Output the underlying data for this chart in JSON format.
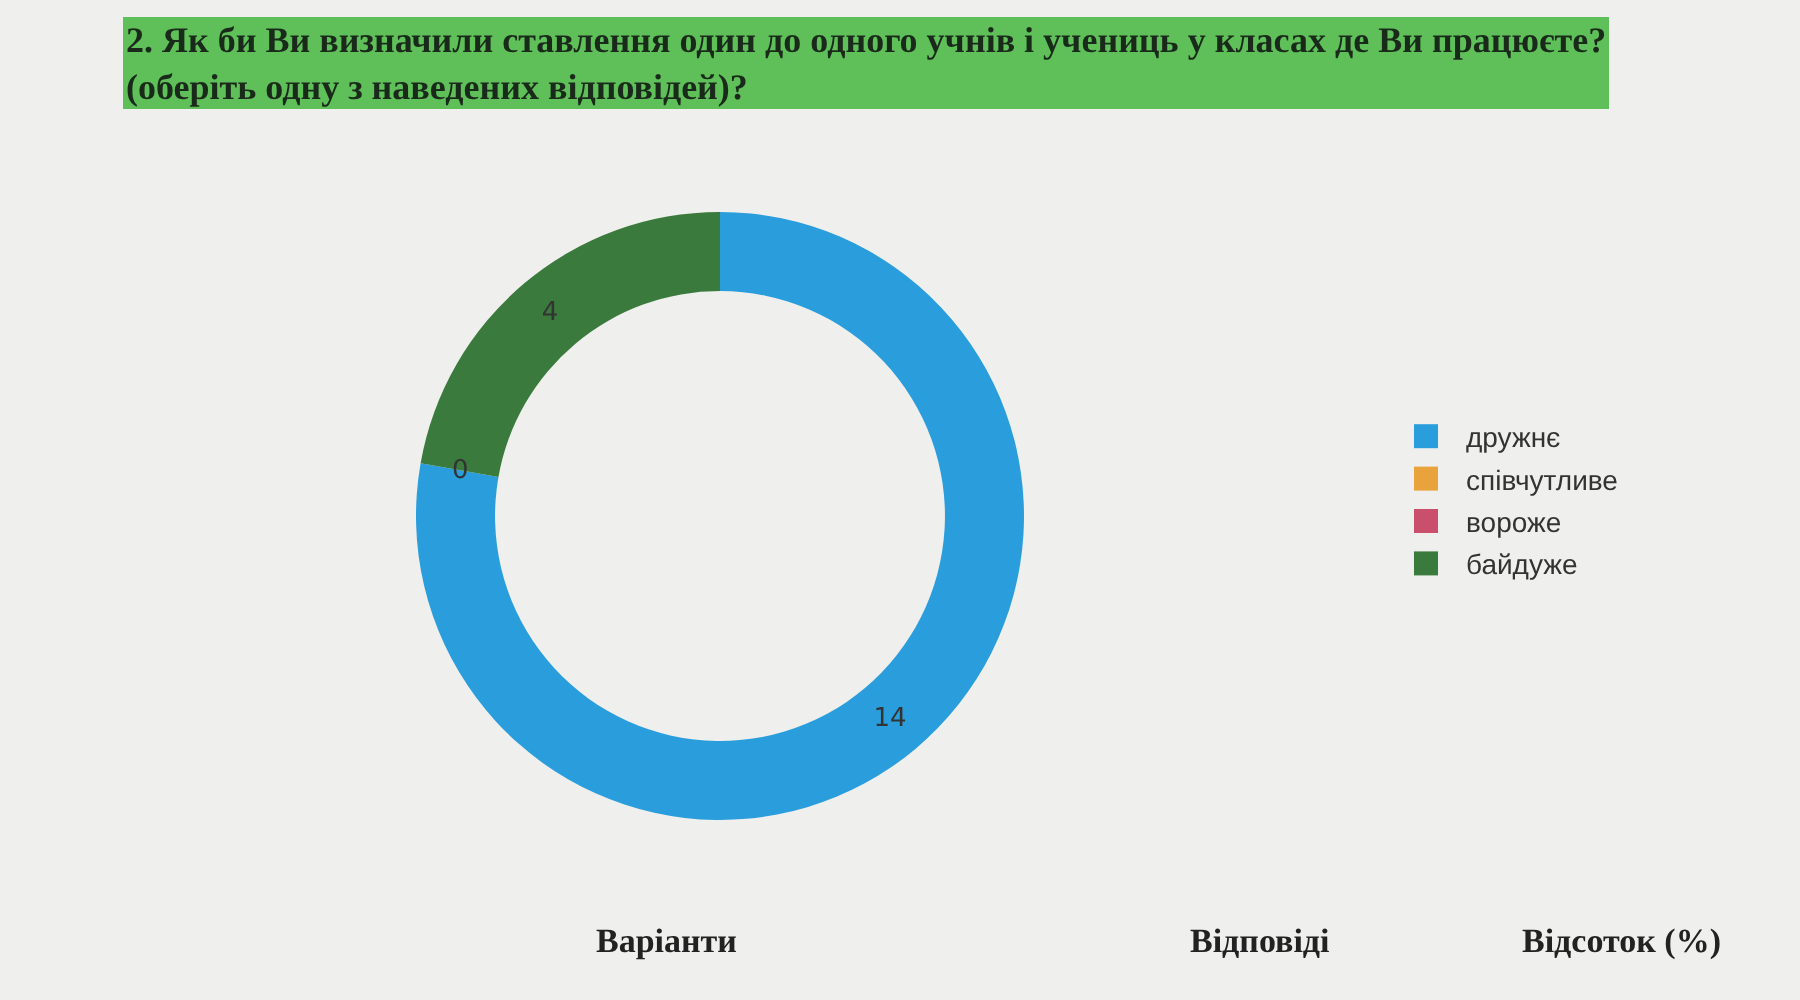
{
  "chart_data": {
    "type": "donut",
    "title": "2. Як би Ви визначили ставлення один до одного учнів і учениць у класах де Ви працюєте?\n(оберіть одну з наведених відповідей)?",
    "categories": [
      "дружнє",
      "співчутливе",
      "вороже",
      "байдуже"
    ],
    "values": [
      14,
      0,
      0,
      4
    ],
    "value_labels": [
      "14",
      "0",
      null,
      "4"
    ],
    "colors": [
      "#2a9edc",
      "#e8a33c",
      "#c94f6d",
      "#3a7a3c"
    ],
    "legend": "right",
    "annotations": [
      "Варіанти",
      "Відповіді",
      "Відсоток (%)"
    ]
  }
}
